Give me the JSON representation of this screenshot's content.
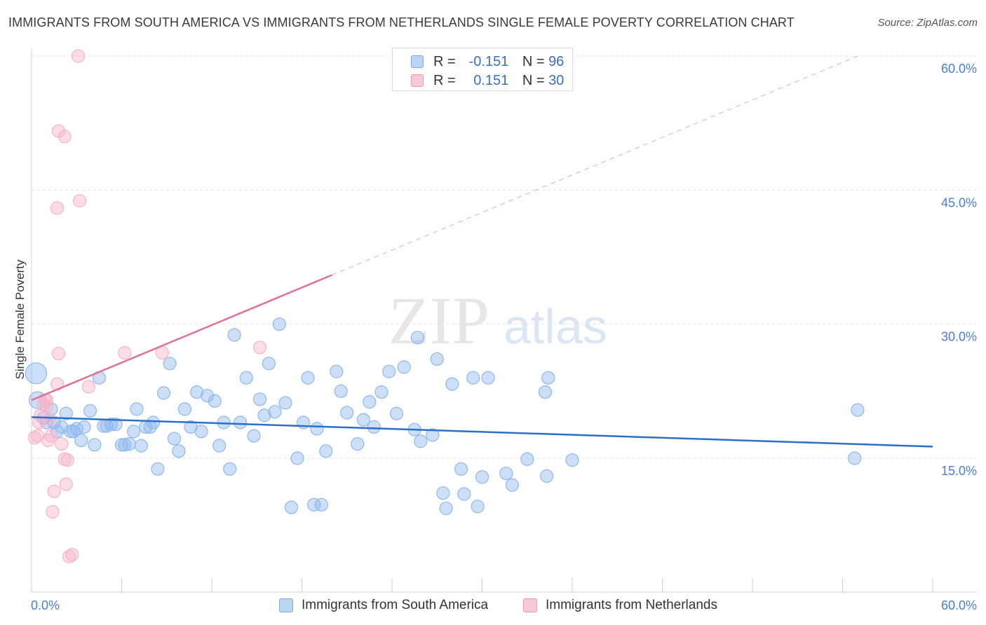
{
  "chart_data": {
    "type": "scatter",
    "title": "IMMIGRANTS FROM SOUTH AMERICA VS IMMIGRANTS FROM NETHERLANDS SINGLE FEMALE POVERTY CORRELATION CHART",
    "source": "Source: ZipAtlas.com",
    "ylabel": "Single Female Poverty",
    "xlabel": "",
    "xlim": [
      0,
      60
    ],
    "ylim": [
      0,
      60
    ],
    "x_tick_labels": [
      "0.0%",
      "60.0%"
    ],
    "y_ticks": [
      {
        "value": 15,
        "label": "15.0%"
      },
      {
        "value": 30,
        "label": "30.0%"
      },
      {
        "value": 45,
        "label": "45.0%"
      },
      {
        "value": 60,
        "label": "60.0%"
      }
    ],
    "watermark": {
      "zip": "ZIP",
      "atlas": "atlas"
    },
    "legend": [
      {
        "r_label": "R =",
        "r_value": "-0.151",
        "n_label": "N =",
        "n_value": "96"
      },
      {
        "r_label": "R =",
        "r_value": "0.151",
        "n_label": "N =",
        "n_value": "30"
      }
    ],
    "series": [
      {
        "name": "Immigrants from South America",
        "color": "#8fb8ee",
        "line_color": "#2b6fcc",
        "trend": {
          "x0": 0,
          "y0": 19.6,
          "x1": 60,
          "y1": 16.3
        },
        "points": [
          [
            0.3,
            24.5
          ],
          [
            0.4,
            21.5
          ],
          [
            0.8,
            19.5
          ],
          [
            1.0,
            19.0
          ],
          [
            1.3,
            20.5
          ],
          [
            1.5,
            19.0
          ],
          [
            1.7,
            18.0
          ],
          [
            2.0,
            18.5
          ],
          [
            2.3,
            20.0
          ],
          [
            2.6,
            18.0
          ],
          [
            2.8,
            18.0
          ],
          [
            3.0,
            18.3
          ],
          [
            3.3,
            17.0
          ],
          [
            3.5,
            18.5
          ],
          [
            3.9,
            20.3
          ],
          [
            4.2,
            16.5
          ],
          [
            4.5,
            24.0
          ],
          [
            4.8,
            18.6
          ],
          [
            5.0,
            18.6
          ],
          [
            5.3,
            18.8
          ],
          [
            5.6,
            18.8
          ],
          [
            6.0,
            16.5
          ],
          [
            6.2,
            16.5
          ],
          [
            6.5,
            16.6
          ],
          [
            6.8,
            18.0
          ],
          [
            7.0,
            20.5
          ],
          [
            7.3,
            16.4
          ],
          [
            7.6,
            18.5
          ],
          [
            7.9,
            18.5
          ],
          [
            8.1,
            19.0
          ],
          [
            8.4,
            13.8
          ],
          [
            8.8,
            22.3
          ],
          [
            9.2,
            25.6
          ],
          [
            9.5,
            17.2
          ],
          [
            9.8,
            15.8
          ],
          [
            10.2,
            20.5
          ],
          [
            10.6,
            18.5
          ],
          [
            11.0,
            22.4
          ],
          [
            11.3,
            18.0
          ],
          [
            11.7,
            22.0
          ],
          [
            12.2,
            21.4
          ],
          [
            12.5,
            16.4
          ],
          [
            12.8,
            19.0
          ],
          [
            13.2,
            13.8
          ],
          [
            13.5,
            28.8
          ],
          [
            13.9,
            19.0
          ],
          [
            14.3,
            24.0
          ],
          [
            14.8,
            17.5
          ],
          [
            15.2,
            21.6
          ],
          [
            15.5,
            19.8
          ],
          [
            15.8,
            25.6
          ],
          [
            16.2,
            20.2
          ],
          [
            16.5,
            30.0
          ],
          [
            16.9,
            21.2
          ],
          [
            17.3,
            9.5
          ],
          [
            17.7,
            15.0
          ],
          [
            18.1,
            19.0
          ],
          [
            18.4,
            24.0
          ],
          [
            18.8,
            9.8
          ],
          [
            19.0,
            18.3
          ],
          [
            19.3,
            9.8
          ],
          [
            19.6,
            15.8
          ],
          [
            20.3,
            24.7
          ],
          [
            20.6,
            22.5
          ],
          [
            21.0,
            20.1
          ],
          [
            21.7,
            16.6
          ],
          [
            22.1,
            19.3
          ],
          [
            22.5,
            21.3
          ],
          [
            22.8,
            18.5
          ],
          [
            23.3,
            22.4
          ],
          [
            23.8,
            24.7
          ],
          [
            24.3,
            20.0
          ],
          [
            24.8,
            25.2
          ],
          [
            25.5,
            18.2
          ],
          [
            25.7,
            28.5
          ],
          [
            25.9,
            16.9
          ],
          [
            26.7,
            17.6
          ],
          [
            27.0,
            26.1
          ],
          [
            27.4,
            11.1
          ],
          [
            27.6,
            9.4
          ],
          [
            28.0,
            23.3
          ],
          [
            28.6,
            13.8
          ],
          [
            28.8,
            11.0
          ],
          [
            29.4,
            24.0
          ],
          [
            29.7,
            9.6
          ],
          [
            30.0,
            12.9
          ],
          [
            30.4,
            24.0
          ],
          [
            31.6,
            13.3
          ],
          [
            32.0,
            12.0
          ],
          [
            33.0,
            14.9
          ],
          [
            34.2,
            22.4
          ],
          [
            34.4,
            24.0
          ],
          [
            34.3,
            13.0
          ],
          [
            36.0,
            14.8
          ],
          [
            55.0,
            20.4
          ],
          [
            54.8,
            15.0
          ]
        ]
      },
      {
        "name": "Immigrants from Netherlands",
        "color": "#f6b4c8",
        "line_color": "#e0709a",
        "trend": {
          "x0": 0,
          "y0": 21.5,
          "x1": 20,
          "y1": 35.5
        },
        "trend_ext": {
          "x0": 20,
          "y0": 35.5,
          "x1": 55,
          "y1": 60.0
        },
        "points": [
          [
            0.2,
            17.3
          ],
          [
            0.4,
            17.5
          ],
          [
            0.5,
            19.0
          ],
          [
            0.6,
            19.8
          ],
          [
            0.8,
            21.0
          ],
          [
            0.9,
            21.5
          ],
          [
            1.0,
            20.8
          ],
          [
            1.1,
            17.0
          ],
          [
            1.2,
            19.4
          ],
          [
            1.3,
            17.5
          ],
          [
            1.4,
            9.0
          ],
          [
            1.5,
            11.3
          ],
          [
            1.7,
            23.3
          ],
          [
            1.8,
            26.7
          ],
          [
            2.0,
            16.6
          ],
          [
            2.2,
            14.9
          ],
          [
            2.3,
            12.1
          ],
          [
            2.4,
            14.8
          ],
          [
            2.5,
            4.0
          ],
          [
            2.7,
            4.2
          ],
          [
            3.1,
            60.0
          ],
          [
            1.8,
            51.6
          ],
          [
            2.2,
            51.0
          ],
          [
            1.7,
            43.0
          ],
          [
            3.2,
            43.8
          ],
          [
            3.8,
            23.0
          ],
          [
            6.2,
            26.8
          ],
          [
            8.7,
            26.8
          ],
          [
            15.2,
            27.4
          ],
          [
            1.0,
            21.5
          ]
        ]
      }
    ]
  }
}
